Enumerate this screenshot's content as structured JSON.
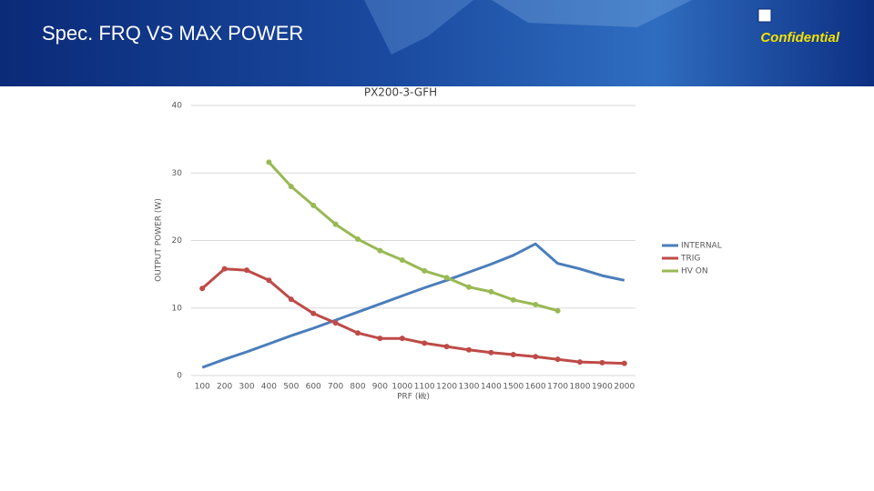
{
  "slide": {
    "title": "Spec. FRQ VS MAX POWER",
    "badge": "Confidential"
  },
  "chart_data": {
    "type": "line",
    "title": "PX200-3-GFH",
    "y_label": "OUTPUT POWER (W)",
    "x_label": "PRF (㎑)",
    "categories": [
      "100",
      "200",
      "300",
      "400",
      "500",
      "600",
      "700",
      "800",
      "900",
      "1000",
      "1100",
      "1200",
      "1300",
      "1400",
      "1500",
      "1600",
      "1700",
      "1800",
      "1900",
      "2000"
    ],
    "series": [
      {
        "name": "INTERNAL",
        "color": "#4a7ebb",
        "marker": false,
        "values": [
          1.2,
          2.4,
          3.5,
          4.7,
          5.9,
          7.0,
          8.2,
          9.4,
          10.6,
          11.8,
          13.0,
          14.1,
          15.3,
          16.5,
          17.8,
          19.5,
          16.6,
          15.8,
          14.8,
          14.1
        ]
      },
      {
        "name": "TRIG",
        "color": "#be4b48",
        "marker": true,
        "values": [
          12.9,
          15.8,
          15.6,
          14.1,
          11.3,
          9.2,
          7.8,
          6.3,
          5.5,
          5.5,
          4.8,
          4.3,
          3.8,
          3.4,
          3.1,
          2.8,
          2.4,
          2.0,
          1.9,
          1.8
        ]
      },
      {
        "name": "HV ON",
        "color": "#98b954",
        "marker": true,
        "values": [
          null,
          null,
          null,
          31.6,
          28.0,
          25.2,
          22.4,
          20.2,
          18.5,
          17.1,
          15.5,
          14.5,
          13.1,
          12.4,
          11.2,
          10.5,
          9.6,
          null,
          null,
          null
        ]
      }
    ],
    "ylim": [
      0,
      40
    ],
    "yticks": [
      0,
      10,
      20,
      30,
      40
    ],
    "grid": true,
    "legend": "right"
  }
}
